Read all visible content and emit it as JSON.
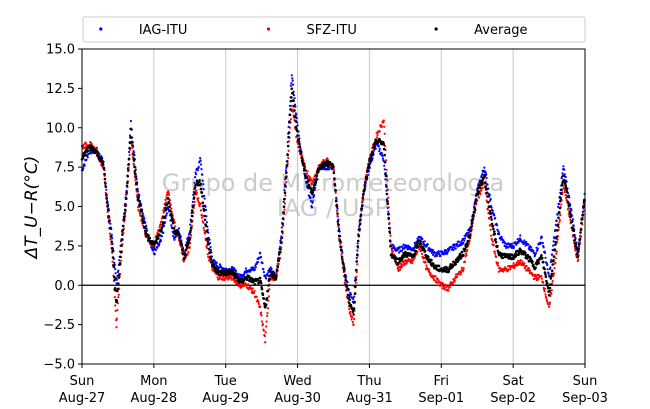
{
  "chart_data": {
    "type": "scatter",
    "ylabel": "ΔT_U−R(°C)",
    "ylim": [
      -5.0,
      15.0
    ],
    "yticks": [
      -5.0,
      -2.5,
      0.0,
      2.5,
      5.0,
      7.5,
      10.0,
      12.5,
      15.0
    ],
    "ytick_labels": [
      "−5.0",
      "−2.5",
      "0.0",
      "2.5",
      "5.0",
      "7.5",
      "10.0",
      "12.5",
      "15.0"
    ],
    "xlim": [
      0,
      7
    ],
    "x_unit": "days since Aug-27 00:00",
    "xticks": [
      {
        "day": "Sun",
        "date": "Aug-27"
      },
      {
        "day": "Mon",
        "date": "Aug-28"
      },
      {
        "day": "Tue",
        "date": "Aug-29"
      },
      {
        "day": "Wed",
        "date": "Aug-30"
      },
      {
        "day": "Thu",
        "date": "Aug-31"
      },
      {
        "day": "Fri",
        "date": "Sep-01"
      },
      {
        "day": "Sat",
        "date": "Sep-02"
      },
      {
        "day": "Sun",
        "date": "Sep-03"
      }
    ],
    "grid": "vertical",
    "zero_line": 0,
    "legend_position": "top",
    "series": [
      {
        "name": "IAG-ITU",
        "color": "#0000ff",
        "x": [
          0.0,
          0.1,
          0.2,
          0.3,
          0.35,
          0.42,
          0.48,
          0.55,
          0.62,
          0.68,
          0.78,
          0.9,
          1.0,
          1.1,
          1.2,
          1.28,
          1.35,
          1.42,
          1.5,
          1.58,
          1.65,
          1.75,
          1.82,
          1.9,
          2.0,
          2.1,
          2.2,
          2.3,
          2.4,
          2.48,
          2.55,
          2.62,
          2.7,
          2.78,
          2.85,
          2.92,
          3.0,
          3.1,
          3.2,
          3.3,
          3.4,
          3.5,
          3.58,
          3.65,
          3.72,
          3.78,
          3.85,
          3.92,
          4.0,
          4.1,
          4.2,
          4.3,
          4.4,
          4.5,
          4.6,
          4.7,
          4.8,
          4.9,
          5.0,
          5.1,
          5.2,
          5.3,
          5.4,
          5.5,
          5.6,
          5.7,
          5.8,
          5.9,
          6.0,
          6.1,
          6.2,
          6.3,
          6.4,
          6.5,
          6.6,
          6.7,
          6.8,
          6.9,
          7.0
        ],
        "y": [
          7.3,
          8.5,
          8.6,
          7.8,
          5.5,
          3.0,
          0.0,
          3.0,
          6.0,
          10.3,
          6.0,
          3.5,
          2.0,
          2.8,
          5.0,
          3.0,
          3.5,
          2.0,
          3.5,
          7.0,
          8.0,
          3.5,
          1.5,
          1.2,
          1.0,
          1.0,
          0.5,
          1.0,
          1.0,
          2.0,
          0.5,
          1.0,
          0.5,
          3.5,
          8.0,
          13.5,
          10.0,
          7.0,
          5.0,
          7.5,
          7.5,
          7.5,
          3.5,
          1.0,
          -0.5,
          -1.0,
          3.5,
          6.0,
          7.5,
          9.0,
          8.0,
          2.5,
          2.2,
          2.5,
          2.3,
          3.0,
          2.5,
          2.0,
          2.0,
          2.2,
          2.5,
          2.8,
          3.5,
          6.0,
          7.5,
          5.0,
          3.2,
          2.5,
          2.5,
          3.0,
          2.5,
          2.0,
          3.0,
          0.5,
          4.0,
          7.5,
          5.0,
          2.0,
          6.0
        ]
      },
      {
        "name": "SFZ-ITU",
        "color": "#ff0000",
        "x": [
          0.0,
          0.1,
          0.2,
          0.3,
          0.35,
          0.42,
          0.48,
          0.55,
          0.62,
          0.68,
          0.78,
          0.9,
          1.0,
          1.1,
          1.2,
          1.28,
          1.35,
          1.42,
          1.5,
          1.58,
          1.65,
          1.75,
          1.82,
          1.9,
          2.0,
          2.1,
          2.2,
          2.3,
          2.4,
          2.48,
          2.55,
          2.62,
          2.7,
          2.78,
          2.85,
          2.92,
          3.0,
          3.1,
          3.2,
          3.3,
          3.4,
          3.5,
          3.58,
          3.65,
          3.72,
          3.78,
          3.85,
          3.92,
          4.0,
          4.1,
          4.2,
          4.3,
          4.4,
          4.5,
          4.6,
          4.7,
          4.8,
          4.9,
          5.0,
          5.1,
          5.2,
          5.3,
          5.4,
          5.5,
          5.6,
          5.7,
          5.8,
          5.9,
          6.0,
          6.1,
          6.2,
          6.3,
          6.4,
          6.5,
          6.6,
          6.7,
          6.8,
          6.9,
          7.0
        ],
        "y": [
          8.8,
          9.0,
          8.5,
          7.5,
          5.0,
          2.0,
          -2.5,
          2.0,
          5.5,
          9.5,
          5.0,
          3.0,
          2.5,
          4.0,
          6.0,
          4.0,
          3.0,
          1.5,
          2.5,
          6.0,
          5.0,
          2.0,
          1.0,
          0.5,
          0.5,
          0.5,
          0.0,
          0.0,
          -0.5,
          -1.5,
          -3.5,
          0.5,
          0.5,
          2.5,
          7.0,
          11.5,
          9.0,
          7.5,
          6.5,
          7.5,
          8.0,
          7.5,
          3.0,
          0.5,
          -1.5,
          -2.5,
          3.0,
          6.0,
          8.0,
          9.5,
          10.5,
          2.5,
          1.0,
          1.5,
          1.5,
          2.5,
          1.0,
          0.5,
          0.0,
          -0.2,
          0.5,
          1.0,
          3.0,
          5.5,
          6.5,
          3.0,
          1.0,
          1.0,
          1.2,
          1.5,
          1.0,
          0.5,
          0.5,
          -1.5,
          2.0,
          6.5,
          4.0,
          1.5,
          5.5
        ]
      },
      {
        "name": "Average",
        "color": "#000000",
        "x": [
          0.0,
          0.1,
          0.2,
          0.3,
          0.35,
          0.42,
          0.48,
          0.55,
          0.62,
          0.68,
          0.78,
          0.9,
          1.0,
          1.1,
          1.2,
          1.28,
          1.35,
          1.42,
          1.5,
          1.58,
          1.65,
          1.75,
          1.82,
          1.9,
          2.0,
          2.1,
          2.2,
          2.3,
          2.4,
          2.48,
          2.55,
          2.62,
          2.7,
          2.78,
          2.85,
          2.92,
          3.0,
          3.1,
          3.2,
          3.3,
          3.4,
          3.5,
          3.58,
          3.65,
          3.72,
          3.78,
          3.85,
          3.92,
          4.0,
          4.1,
          4.2,
          4.3,
          4.4,
          4.5,
          4.6,
          4.7,
          4.8,
          4.9,
          5.0,
          5.1,
          5.2,
          5.3,
          5.4,
          5.5,
          5.6,
          5.7,
          5.8,
          5.9,
          6.0,
          6.1,
          6.2,
          6.3,
          6.4,
          6.5,
          6.6,
          6.7,
          6.8,
          6.9,
          7.0
        ],
        "y": [
          8.0,
          8.8,
          8.5,
          7.6,
          5.2,
          2.5,
          -1.2,
          2.5,
          5.8,
          9.8,
          5.5,
          3.2,
          2.5,
          3.5,
          5.5,
          3.5,
          3.2,
          1.8,
          3.0,
          6.5,
          6.5,
          2.8,
          1.2,
          0.8,
          0.8,
          0.8,
          0.2,
          0.5,
          0.2,
          0.3,
          -1.5,
          0.8,
          0.5,
          3.0,
          7.5,
          12.5,
          9.5,
          7.2,
          5.8,
          7.5,
          7.8,
          7.5,
          3.2,
          0.8,
          -1.0,
          -1.8,
          3.2,
          6.0,
          7.8,
          9.2,
          9.0,
          2.0,
          1.5,
          2.0,
          1.8,
          2.8,
          1.8,
          1.2,
          1.0,
          1.0,
          1.5,
          2.0,
          3.2,
          5.8,
          7.0,
          4.0,
          2.0,
          1.8,
          1.8,
          2.2,
          1.8,
          1.2,
          1.8,
          -0.5,
          3.0,
          7.0,
          4.5,
          1.8,
          5.8
        ]
      }
    ],
    "watermark": [
      "Grupo de Micrometeorologia",
      "IAG / USP"
    ]
  }
}
